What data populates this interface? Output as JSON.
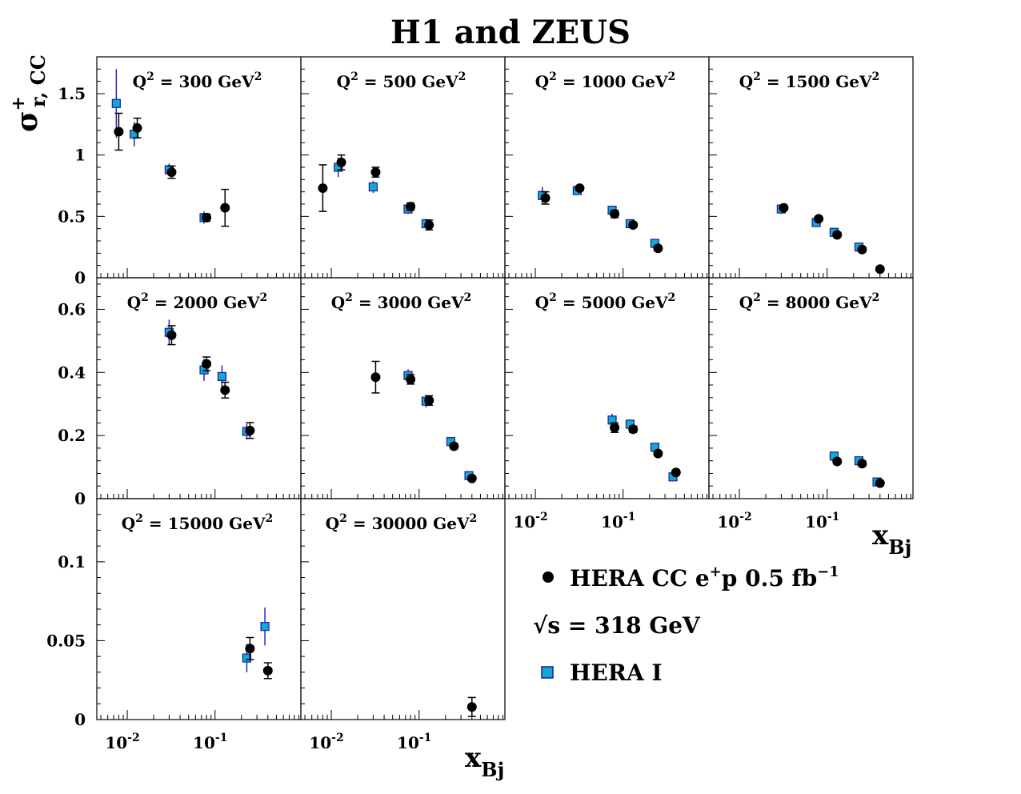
{
  "title": "H1 and ZEUS",
  "y_axis_label": {
    "main": "σ",
    "sup": "+",
    "sub": "r, CC"
  },
  "x_axis_label": {
    "main": "x",
    "sub": "Bj"
  },
  "legend": [
    {
      "label_main": "HERA CC e",
      "label_sup": "+",
      "label_mid": "p 0.5 fb",
      "label_sup2": "−1",
      "marker": "circle",
      "color": "#000000"
    },
    {
      "label_main": "√s = 318 GeV",
      "marker": "none"
    },
    {
      "label_main": "HERA I",
      "marker": "square",
      "color": "#11aacc",
      "edge": "#1a1aaa"
    }
  ],
  "chart_data": {
    "type": "scatter",
    "xscale": "log",
    "xlim": [
      0.0045,
      0.95
    ],
    "xtick_labels": [
      {
        "base": "10",
        "exp": "-2",
        "value": 0.01
      },
      {
        "base": "10",
        "exp": "-1",
        "value": 0.1
      }
    ],
    "rows": [
      {
        "ylim": [
          0,
          1.8
        ],
        "yticks": [
          0,
          0.5,
          1,
          1.5
        ],
        "ytick_labels": [
          "0",
          "0.5",
          "1",
          "1.5"
        ]
      },
      {
        "ylim": [
          0,
          0.7
        ],
        "yticks": [
          0,
          0.2,
          0.4,
          0.6
        ],
        "ytick_labels": [
          "0",
          "0.2",
          "0.4",
          "0.6"
        ]
      },
      {
        "ylim": [
          0,
          0.14
        ],
        "yticks": [
          0,
          0.05,
          0.1
        ],
        "ytick_labels": [
          "0",
          "0.05",
          "0.1"
        ]
      }
    ],
    "panels": [
      {
        "label_pre": "Q",
        "label_exp": "2",
        "label_mid": " = 300 GeV",
        "label_exp2": "2",
        "row": 0,
        "col": 0,
        "series": [
          {
            "name": "HERA CC e+p 0.5 fb-1",
            "points": [
              {
                "x": 0.008,
                "y": 1.19,
                "err": 0.15
              },
              {
                "x": 0.013,
                "y": 1.22,
                "err": 0.08
              },
              {
                "x": 0.032,
                "y": 0.86,
                "err": 0.05
              },
              {
                "x": 0.08,
                "y": 0.49,
                "err": 0.03
              },
              {
                "x": 0.13,
                "y": 0.57,
                "err": 0.15
              }
            ]
          },
          {
            "name": "HERA I",
            "points": [
              {
                "x": 0.0075,
                "y": 1.42,
                "err": 0.28
              },
              {
                "x": 0.012,
                "y": 1.17,
                "err": 0.1
              },
              {
                "x": 0.03,
                "y": 0.88,
                "err": 0.05
              },
              {
                "x": 0.075,
                "y": 0.49,
                "err": 0.05
              }
            ]
          }
        ]
      },
      {
        "label_pre": "Q",
        "label_exp": "2",
        "label_mid": " = 500 GeV",
        "label_exp2": "2",
        "row": 0,
        "col": 1,
        "series": [
          {
            "name": "HERA CC e+p 0.5 fb-1",
            "points": [
              {
                "x": 0.008,
                "y": 0.73,
                "err": 0.19
              },
              {
                "x": 0.013,
                "y": 0.94,
                "err": 0.06
              },
              {
                "x": 0.032,
                "y": 0.86,
                "err": 0.04
              },
              {
                "x": 0.08,
                "y": 0.58,
                "err": 0.03
              },
              {
                "x": 0.13,
                "y": 0.43,
                "err": 0.04
              }
            ]
          },
          {
            "name": "HERA I",
            "points": [
              {
                "x": 0.012,
                "y": 0.9,
                "err": 0.08
              },
              {
                "x": 0.03,
                "y": 0.74,
                "err": 0.05
              },
              {
                "x": 0.075,
                "y": 0.56,
                "err": 0.04
              },
              {
                "x": 0.12,
                "y": 0.44,
                "err": 0.04
              }
            ]
          }
        ]
      },
      {
        "label_pre": "Q",
        "label_exp": "2",
        "label_mid": " = 1000 GeV",
        "label_exp2": "2",
        "row": 0,
        "col": 2,
        "series": [
          {
            "name": "HERA CC e+p 0.5 fb-1",
            "points": [
              {
                "x": 0.013,
                "y": 0.65,
                "err": 0.05
              },
              {
                "x": 0.032,
                "y": 0.73,
                "err": 0.02
              },
              {
                "x": 0.08,
                "y": 0.52,
                "err": 0.03
              },
              {
                "x": 0.13,
                "y": 0.43,
                "err": 0.02
              },
              {
                "x": 0.25,
                "y": 0.24,
                "err": 0.02
              }
            ]
          },
          {
            "name": "HERA I",
            "points": [
              {
                "x": 0.012,
                "y": 0.67,
                "err": 0.07
              },
              {
                "x": 0.03,
                "y": 0.71,
                "err": 0.03
              },
              {
                "x": 0.075,
                "y": 0.55,
                "err": 0.03
              },
              {
                "x": 0.12,
                "y": 0.44,
                "err": 0.03
              },
              {
                "x": 0.23,
                "y": 0.28,
                "err": 0.02
              }
            ]
          }
        ]
      },
      {
        "label_pre": "Q",
        "label_exp": "2",
        "label_mid": " = 1500 GeV",
        "label_exp2": "2",
        "row": 0,
        "col": 3,
        "series": [
          {
            "name": "HERA CC e+p 0.5 fb-1",
            "points": [
              {
                "x": 0.032,
                "y": 0.57,
                "err": 0.02
              },
              {
                "x": 0.08,
                "y": 0.48,
                "err": 0.02
              },
              {
                "x": 0.13,
                "y": 0.35,
                "err": 0.02
              },
              {
                "x": 0.25,
                "y": 0.23,
                "err": 0.02
              },
              {
                "x": 0.4,
                "y": 0.07,
                "err": 0.01
              }
            ]
          },
          {
            "name": "HERA I",
            "points": [
              {
                "x": 0.03,
                "y": 0.56,
                "err": 0.04
              },
              {
                "x": 0.075,
                "y": 0.45,
                "err": 0.03
              },
              {
                "x": 0.12,
                "y": 0.37,
                "err": 0.03
              },
              {
                "x": 0.23,
                "y": 0.25,
                "err": 0.02
              }
            ]
          }
        ]
      },
      {
        "label_pre": "Q",
        "label_exp": "2",
        "label_mid": " = 2000 GeV",
        "label_exp2": "2",
        "row": 1,
        "col": 0,
        "series": [
          {
            "name": "HERA CC e+p 0.5 fb-1",
            "points": [
              {
                "x": 0.032,
                "y": 0.518,
                "err": 0.03
              },
              {
                "x": 0.08,
                "y": 0.427,
                "err": 0.022
              },
              {
                "x": 0.13,
                "y": 0.344,
                "err": 0.025
              },
              {
                "x": 0.25,
                "y": 0.216,
                "err": 0.025
              }
            ]
          },
          {
            "name": "HERA I",
            "points": [
              {
                "x": 0.03,
                "y": 0.527,
                "err": 0.04
              },
              {
                "x": 0.075,
                "y": 0.408,
                "err": 0.035
              },
              {
                "x": 0.12,
                "y": 0.387,
                "err": 0.035
              },
              {
                "x": 0.23,
                "y": 0.213,
                "err": 0.025
              }
            ]
          }
        ]
      },
      {
        "label_pre": "Q",
        "label_exp": "2",
        "label_mid": " = 3000 GeV",
        "label_exp2": "2",
        "row": 1,
        "col": 1,
        "series": [
          {
            "name": "HERA CC e+p 0.5 fb-1",
            "points": [
              {
                "x": 0.032,
                "y": 0.385,
                "err": 0.05
              },
              {
                "x": 0.08,
                "y": 0.378,
                "err": 0.015
              },
              {
                "x": 0.13,
                "y": 0.311,
                "err": 0.015
              },
              {
                "x": 0.25,
                "y": 0.166,
                "err": 0.008
              },
              {
                "x": 0.4,
                "y": 0.064,
                "err": 0.006
              }
            ]
          },
          {
            "name": "HERA I",
            "points": [
              {
                "x": 0.075,
                "y": 0.39,
                "err": 0.02
              },
              {
                "x": 0.12,
                "y": 0.309,
                "err": 0.02
              },
              {
                "x": 0.23,
                "y": 0.181,
                "err": 0.012
              },
              {
                "x": 0.37,
                "y": 0.073,
                "err": 0.008
              }
            ]
          }
        ]
      },
      {
        "label_pre": "Q",
        "label_exp": "2",
        "label_mid": " = 5000 GeV",
        "label_exp2": "2",
        "row": 1,
        "col": 2,
        "series": [
          {
            "name": "HERA CC e+p 0.5 fb-1",
            "points": [
              {
                "x": 0.08,
                "y": 0.225,
                "err": 0.015
              },
              {
                "x": 0.13,
                "y": 0.22,
                "err": 0.01
              },
              {
                "x": 0.25,
                "y": 0.143,
                "err": 0.008
              },
              {
                "x": 0.4,
                "y": 0.083,
                "err": 0.008
              }
            ]
          },
          {
            "name": "HERA I",
            "points": [
              {
                "x": 0.075,
                "y": 0.249,
                "err": 0.02
              },
              {
                "x": 0.12,
                "y": 0.236,
                "err": 0.015
              },
              {
                "x": 0.23,
                "y": 0.163,
                "err": 0.012
              },
              {
                "x": 0.37,
                "y": 0.069,
                "err": 0.008
              }
            ]
          }
        ]
      },
      {
        "label_pre": "Q",
        "label_exp": "2",
        "label_mid": " = 8000 GeV",
        "label_exp2": "2",
        "row": 1,
        "col": 3,
        "series": [
          {
            "name": "HERA CC e+p 0.5 fb-1",
            "points": [
              {
                "x": 0.13,
                "y": 0.118,
                "err": 0.008
              },
              {
                "x": 0.25,
                "y": 0.111,
                "err": 0.008
              },
              {
                "x": 0.4,
                "y": 0.049,
                "err": 0.005
              }
            ]
          },
          {
            "name": "HERA I",
            "points": [
              {
                "x": 0.12,
                "y": 0.135,
                "err": 0.012
              },
              {
                "x": 0.23,
                "y": 0.12,
                "err": 0.01
              },
              {
                "x": 0.37,
                "y": 0.053,
                "err": 0.006
              }
            ]
          }
        ]
      },
      {
        "label_pre": "Q",
        "label_exp": "2",
        "label_mid": " = 15000 GeV",
        "label_exp2": "2",
        "row": 2,
        "col": 0,
        "series": [
          {
            "name": "HERA CC e+p 0.5 fb-1",
            "points": [
              {
                "x": 0.25,
                "y": 0.045,
                "err": 0.007
              },
              {
                "x": 0.4,
                "y": 0.031,
                "err": 0.005
              }
            ]
          },
          {
            "name": "HERA I",
            "points": [
              {
                "x": 0.23,
                "y": 0.039,
                "err": 0.009
              },
              {
                "x": 0.37,
                "y": 0.059,
                "err": 0.012
              }
            ]
          }
        ]
      },
      {
        "label_pre": "Q",
        "label_exp": "2",
        "label_mid": " = 30000 GeV",
        "label_exp2": "2",
        "row": 2,
        "col": 1,
        "series": [
          {
            "name": "HERA CC e+p 0.5 fb-1",
            "points": [
              {
                "x": 0.4,
                "y": 0.008,
                "err": 0.006
              }
            ]
          },
          {
            "name": "HERA I",
            "points": []
          }
        ]
      }
    ]
  }
}
